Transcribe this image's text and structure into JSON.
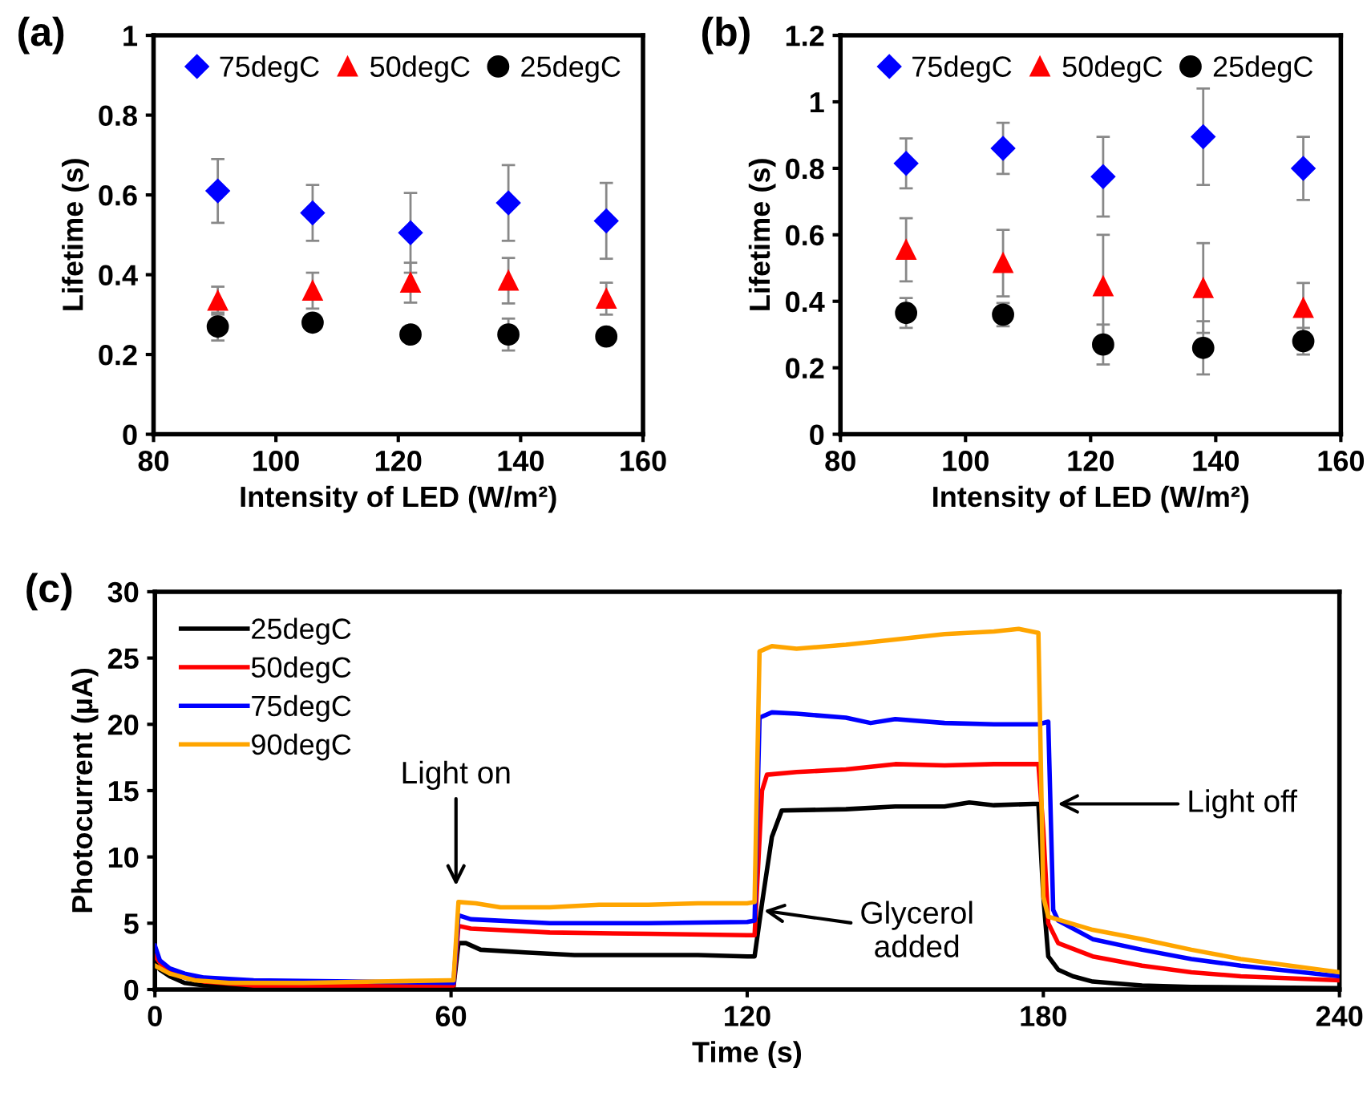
{
  "chart_data": [
    {
      "type": "scatter",
      "title": "(a)",
      "xlabel": "Intensity of LED (W/m²)",
      "ylabel": "Lifetime (s)",
      "xlim": [
        80,
        160
      ],
      "xticks": [
        80,
        100,
        120,
        140,
        160
      ],
      "ylim": [
        0,
        1
      ],
      "yticks": [
        0,
        0.2,
        0.4,
        0.6,
        0.8,
        1
      ],
      "legend": "top",
      "grid": false,
      "x": [
        90.5,
        106,
        122,
        138,
        154
      ],
      "series": [
        {
          "name": "75degC",
          "color": "#0000ff",
          "marker": "diamond",
          "values": [
            0.61,
            0.555,
            0.505,
            0.58,
            0.535
          ],
          "errors": [
            0.08,
            0.07,
            0.1,
            0.095,
            0.095
          ]
        },
        {
          "name": "50degC",
          "color": "#ff0000",
          "marker": "triangle",
          "values": [
            0.335,
            0.36,
            0.38,
            0.385,
            0.34
          ],
          "errors": [
            0.035,
            0.045,
            0.05,
            0.057,
            0.04
          ]
        },
        {
          "name": "25degC",
          "color": "#000000",
          "marker": "circle",
          "values": [
            0.27,
            0.28,
            0.25,
            0.25,
            0.245
          ],
          "errors": [
            0.035,
            0.01,
            0.01,
            0.04,
            0.01
          ]
        }
      ]
    },
    {
      "type": "scatter",
      "title": "(b)",
      "xlabel": "Intensity of LED (W/m²)",
      "ylabel": "Lifetime (s)",
      "xlim": [
        80,
        160
      ],
      "xticks": [
        80,
        100,
        120,
        140,
        160
      ],
      "ylim": [
        0,
        1.2
      ],
      "yticks": [
        0,
        0.2,
        0.4,
        0.6,
        0.8,
        1,
        1.2
      ],
      "legend": "top",
      "grid": false,
      "x": [
        90.5,
        106,
        122,
        138,
        154
      ],
      "series": [
        {
          "name": "75degC",
          "color": "#0000ff",
          "marker": "diamond",
          "values": [
            0.815,
            0.86,
            0.775,
            0.895,
            0.8
          ],
          "errors": [
            0.075,
            0.077,
            0.12,
            0.145,
            0.095
          ]
        },
        {
          "name": "50degC",
          "color": "#ff0000",
          "marker": "triangle",
          "values": [
            0.555,
            0.515,
            0.445,
            0.44,
            0.38
          ],
          "errors": [
            0.095,
            0.1,
            0.155,
            0.135,
            0.075
          ]
        },
        {
          "name": "25degC",
          "color": "#000000",
          "marker": "circle",
          "values": [
            0.365,
            0.36,
            0.27,
            0.26,
            0.28
          ],
          "errors": [
            0.045,
            0.035,
            0.06,
            0.08,
            0.04
          ]
        }
      ]
    },
    {
      "type": "line",
      "title": "(c)",
      "xlabel": "Time (s)",
      "ylabel": "Photocurrent (µA)",
      "xlim": [
        0,
        240
      ],
      "xticks": [
        0,
        60,
        120,
        180,
        240
      ],
      "ylim": [
        0,
        30
      ],
      "yticks": [
        0,
        5,
        10,
        15,
        20,
        25,
        30
      ],
      "legend": "top left",
      "grid": false,
      "marker": "none",
      "line_style": "solid",
      "annotations": [
        "Light on",
        "Glycerol\nadded",
        "Light off"
      ],
      "series": [
        {
          "name": "25degC",
          "color": "#000000",
          "x": [
            0,
            1,
            3,
            6,
            10,
            20,
            40,
            60,
            60.5,
            61.5,
            63,
            66,
            75,
            85,
            100,
            110,
            120,
            121.5,
            123,
            125,
            127,
            140,
            150,
            160,
            165,
            170,
            178,
            179,
            180,
            181,
            183,
            186,
            190,
            200,
            210,
            240
          ],
          "values": [
            2.0,
            1.5,
            1.0,
            0.5,
            0.3,
            0.2,
            0.2,
            0.2,
            0.2,
            3.5,
            3.5,
            3.0,
            2.8,
            2.6,
            2.6,
            2.6,
            2.5,
            2.5,
            6.5,
            11.5,
            13.5,
            13.6,
            13.8,
            13.8,
            14.1,
            13.9,
            14.0,
            14.0,
            7,
            2.5,
            1.5,
            1.0,
            0.6,
            0.3,
            0.2,
            0.1
          ]
        },
        {
          "name": "50degC",
          "color": "#ff0000",
          "x": [
            0,
            2,
            5,
            10,
            20,
            40,
            60,
            60.5,
            61.5,
            64,
            80,
            100,
            120,
            121.5,
            123,
            124,
            130,
            140,
            150,
            160,
            170,
            179,
            180,
            181,
            183,
            190,
            200,
            210,
            220,
            240
          ],
          "values": [
            2.5,
            1.6,
            1.0,
            0.6,
            0.3,
            0.3,
            0.3,
            0.3,
            4.8,
            4.6,
            4.3,
            4.2,
            4.1,
            4.1,
            15,
            16.2,
            16.4,
            16.6,
            17.0,
            16.9,
            17.0,
            17.0,
            12,
            5,
            3.5,
            2.5,
            1.8,
            1.3,
            1.0,
            0.7
          ]
        },
        {
          "name": "75degC",
          "color": "#0000ff",
          "x": [
            0,
            1,
            3,
            6,
            10,
            20,
            40,
            60,
            60.5,
            61.5,
            64,
            80,
            100,
            120,
            121.5,
            122.5,
            125,
            130,
            140,
            145,
            150,
            160,
            170,
            179,
            181,
            182,
            183,
            190,
            200,
            210,
            220,
            240
          ],
          "values": [
            3.3,
            2.2,
            1.6,
            1.2,
            0.9,
            0.7,
            0.6,
            0.5,
            0.5,
            5.6,
            5.3,
            5.0,
            5.0,
            5.1,
            5.2,
            20.5,
            20.9,
            20.8,
            20.5,
            20.1,
            20.4,
            20.1,
            20.0,
            20.0,
            20.2,
            6,
            5.2,
            3.8,
            3.0,
            2.3,
            1.8,
            1.0
          ]
        },
        {
          "name": "90degC",
          "color": "#ffa500",
          "x": [
            0,
            3,
            8,
            15,
            30,
            45,
            60,
            60.5,
            61.5,
            65,
            70,
            80,
            90,
            100,
            110,
            120,
            121.5,
            122.5,
            125,
            130,
            140,
            150,
            160,
            170,
            175,
            179,
            180,
            181,
            190,
            200,
            210,
            220,
            230,
            240
          ],
          "values": [
            1.8,
            1.2,
            0.7,
            0.5,
            0.5,
            0.6,
            0.7,
            0.7,
            6.6,
            6.5,
            6.2,
            6.2,
            6.4,
            6.4,
            6.5,
            6.5,
            6.6,
            25.5,
            25.9,
            25.7,
            26.0,
            26.4,
            26.8,
            27.0,
            27.2,
            26.9,
            7,
            5.5,
            4.5,
            3.8,
            3.0,
            2.3,
            1.8,
            1.3
          ]
        }
      ]
    }
  ]
}
